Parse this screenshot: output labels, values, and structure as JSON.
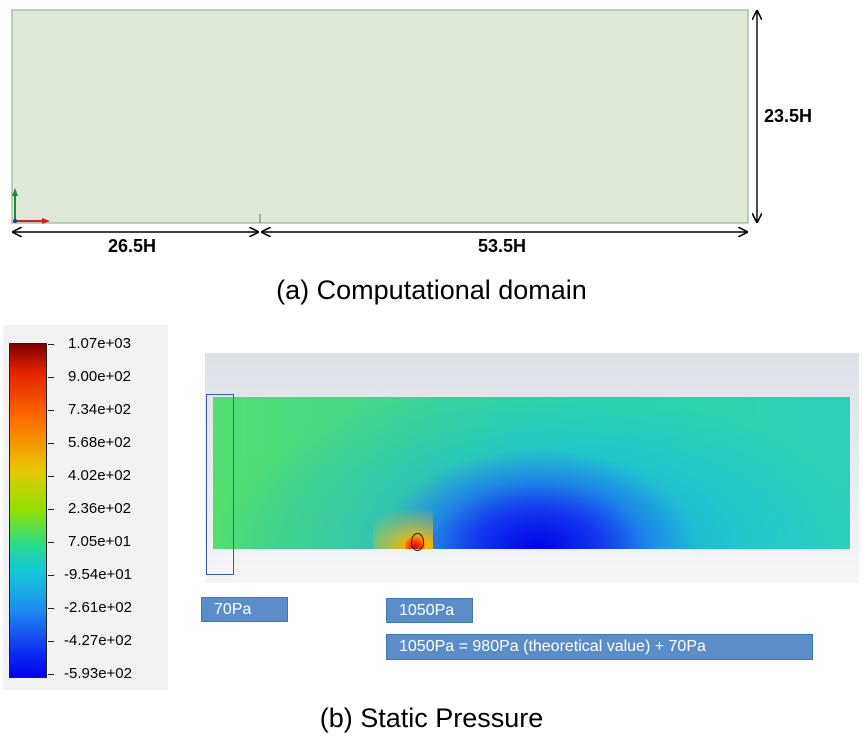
{
  "domain_panel": {
    "height_label": "23.5H",
    "left_length_label": "26.5H",
    "right_length_label": "53.5H",
    "fill_color": "#dfe9da",
    "caption": "(a) Computational domain"
  },
  "pressure_panel": {
    "colorbar_ticks": [
      "1.07e+03",
      "9.00e+02",
      "7.34e+02",
      "5.68e+02",
      "4.02e+02",
      "2.36e+02",
      "7.05e+01",
      "-9.54e+01",
      "-2.61e+02",
      "-4.27e+02",
      "-5.93e+02"
    ],
    "tags": {
      "inlet": "70Pa",
      "stagnation": "1050Pa",
      "equation": "1050Pa = 980Pa (theoretical value) + 70Pa"
    },
    "caption": "(b) Static Pressure"
  }
}
